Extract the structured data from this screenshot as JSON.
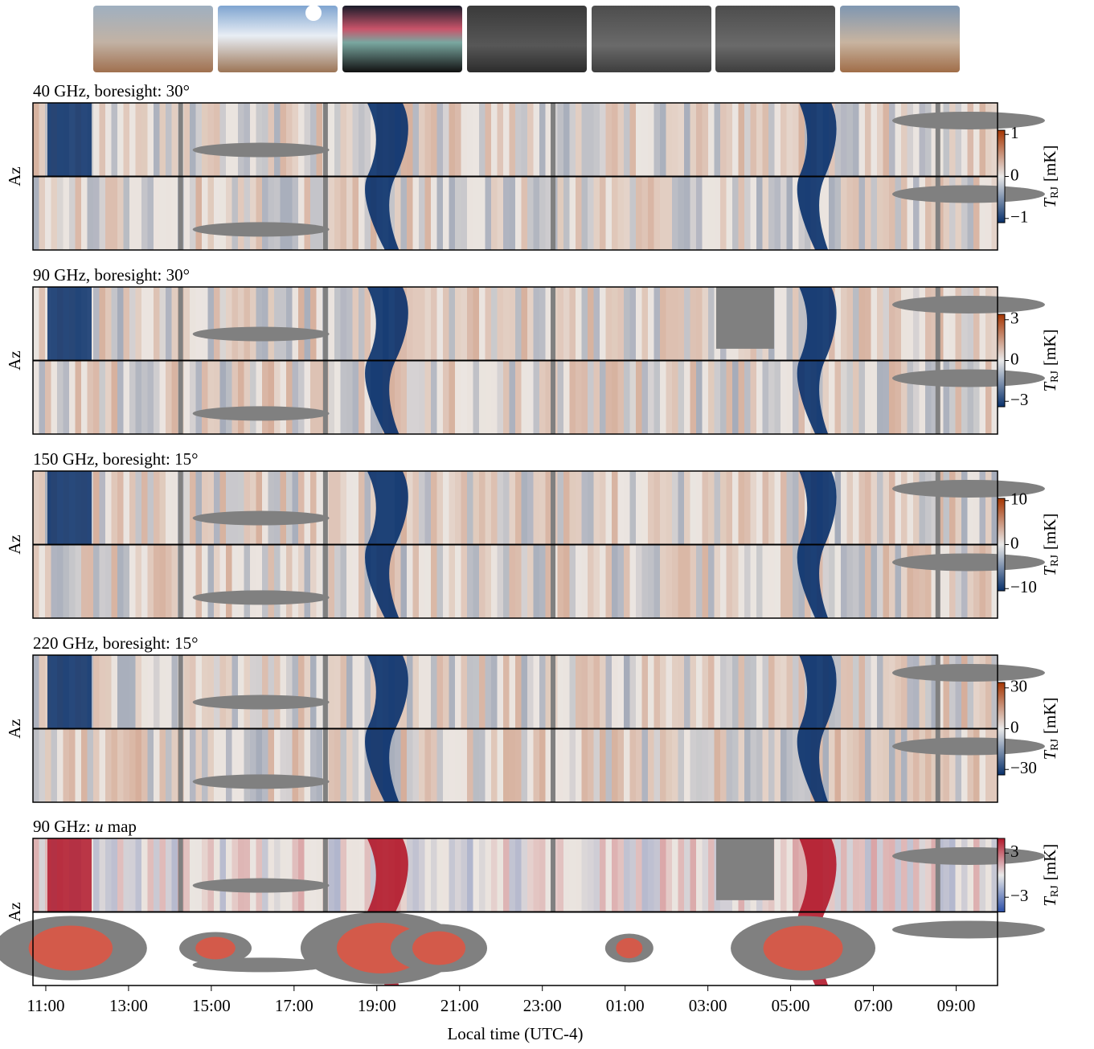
{
  "chart_data": [
    {
      "type": "heatmap",
      "title": "40 GHz, boresight: 30°",
      "ylabel": "Az",
      "cbar_symbol": "T",
      "cbar_subscript": "RJ",
      "cbar_unit": "[mK]",
      "clim": [
        -1.1,
        1.1
      ],
      "cticks": [
        1,
        0,
        {
          "value": -1,
          "label": "−1"
        }
      ],
      "colormap": [
        "#08306b",
        "#e9e9e9",
        "#a63603"
      ]
    },
    {
      "type": "heatmap",
      "title": "90 GHz, boresight: 30°",
      "ylabel": "Az",
      "cbar_symbol": "T",
      "cbar_subscript": "RJ",
      "cbar_unit": "[mK]",
      "clim": [
        -3.4,
        3.4
      ],
      "cticks": [
        3,
        0,
        {
          "value": -3,
          "label": "−3"
        }
      ],
      "colormap": [
        "#08306b",
        "#e9e9e9",
        "#a63603"
      ]
    },
    {
      "type": "heatmap",
      "title": "150 GHz, boresight: 15°",
      "ylabel": "Az",
      "cbar_symbol": "T",
      "cbar_subscript": "RJ",
      "cbar_unit": "[mK]",
      "clim": [
        -10.5,
        10.5
      ],
      "cticks": [
        10,
        0,
        {
          "value": -10,
          "label": "−10"
        }
      ],
      "colormap": [
        "#08306b",
        "#e9e9e9",
        "#a63603"
      ]
    },
    {
      "type": "heatmap",
      "title": "220 GHz, boresight: 15°",
      "ylabel": "Az",
      "cbar_symbol": "T",
      "cbar_subscript": "RJ",
      "cbar_unit": "[mK]",
      "clim": [
        -34,
        34
      ],
      "cticks": [
        30,
        0,
        {
          "value": -30,
          "label": "−30"
        }
      ],
      "colormap": [
        "#08306b",
        "#e9e9e9",
        "#a63603"
      ]
    },
    {
      "type": "heatmap",
      "title_prefix": "90 GHz: ",
      "title_italic": "u",
      "title_suffix": " map",
      "ylabel": "Az",
      "cbar_symbol": "T",
      "cbar_subscript": "RJ",
      "cbar_unit": "[mK]",
      "clim": [
        -5,
        5
      ],
      "cticks": [
        3,
        {
          "value": -3,
          "label": "−3"
        }
      ],
      "colormap": [
        "#2c4fa8",
        "#e9e9e9",
        "#b2182b"
      ],
      "xlabel": "Local time (UTC-4)",
      "xlim": [
        10.69,
        34.0
      ],
      "xticks": [
        {
          "value": 11,
          "label": "11:00"
        },
        {
          "value": 13,
          "label": "13:00"
        },
        {
          "value": 15,
          "label": "15:00"
        },
        {
          "value": 17,
          "label": "17:00"
        },
        {
          "value": 19,
          "label": "19:00"
        },
        {
          "value": 21,
          "label": "21:00"
        },
        {
          "value": 23,
          "label": "23:00"
        },
        {
          "value": 25,
          "label": "01:00"
        },
        {
          "value": 27,
          "label": "03:00"
        },
        {
          "value": 29,
          "label": "05:00"
        },
        {
          "value": 31,
          "label": "07:00"
        },
        {
          "value": 33,
          "label": "09:00"
        }
      ]
    }
  ]
}
